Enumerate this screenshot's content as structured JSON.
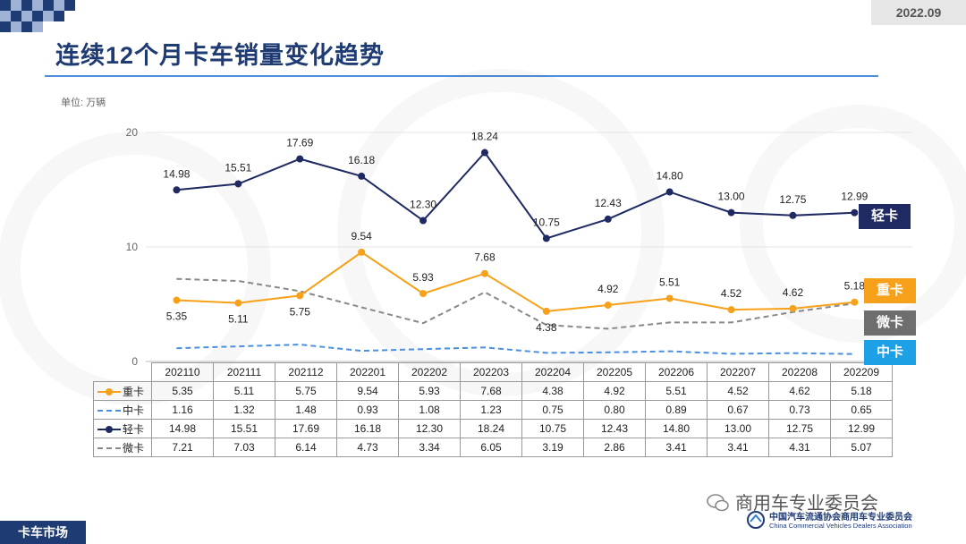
{
  "header": {
    "date": "2022.09",
    "title": "连续12个月卡车销量变化趋势",
    "unit": "单位: 万辆"
  },
  "chart_data": {
    "type": "line",
    "title": "连续12个月卡车销量变化趋势",
    "ylabel": "单位: 万辆",
    "ylim": [
      0,
      20
    ],
    "yticks": [
      "0",
      "10",
      "20"
    ],
    "categories": [
      "202110",
      "202111",
      "202112",
      "202201",
      "202202",
      "202203",
      "202204",
      "202205",
      "202206",
      "202207",
      "202208",
      "202209"
    ],
    "series": [
      {
        "name": "重卡",
        "tag": "重卡",
        "color": "#f7a11a",
        "style": "solid-marker",
        "values": [
          5.35,
          5.11,
          5.75,
          9.54,
          5.93,
          7.68,
          4.38,
          4.92,
          5.51,
          4.52,
          4.62,
          5.18
        ],
        "labels": [
          "5.35",
          "5.11",
          "5.75",
          "9.54",
          "5.93",
          "7.68",
          "4.38",
          "4.92",
          "5.51",
          "4.52",
          "4.62",
          "5.18"
        ]
      },
      {
        "name": "中卡",
        "tag": "中卡",
        "color": "#4a90e2",
        "style": "dashed",
        "values": [
          1.16,
          1.32,
          1.48,
          0.93,
          1.08,
          1.23,
          0.75,
          0.8,
          0.89,
          0.67,
          0.73,
          0.65
        ],
        "labels": [
          "1.16",
          "1.32",
          "1.48",
          "0.93",
          "1.08",
          "1.23",
          "0.75",
          "0.80",
          "0.89",
          "0.67",
          "0.73",
          "0.65"
        ]
      },
      {
        "name": "轻卡",
        "tag": "轻卡",
        "color": "#1f2a63",
        "style": "solid-marker",
        "values": [
          14.98,
          15.51,
          17.69,
          16.18,
          12.3,
          18.24,
          10.75,
          12.43,
          14.8,
          13.0,
          12.75,
          12.99
        ],
        "labels": [
          "14.98",
          "15.51",
          "17.69",
          "16.18",
          "12.30",
          "18.24",
          "10.75",
          "12.43",
          "14.80",
          "13.00",
          "12.75",
          "12.99"
        ]
      },
      {
        "name": "微卡",
        "tag": "微卡",
        "color": "#888888",
        "style": "dashed",
        "values": [
          7.21,
          7.03,
          6.14,
          4.73,
          3.34,
          6.05,
          3.19,
          2.86,
          3.41,
          3.41,
          4.31,
          5.07
        ],
        "labels": [
          "7.21",
          "7.03",
          "6.14",
          "4.73",
          "3.34",
          "6.05",
          "3.19",
          "2.86",
          "3.41",
          "3.41",
          "4.31",
          "5.07"
        ]
      }
    ]
  },
  "tags": {
    "light": "轻卡",
    "heavy": "重卡",
    "mini": "微卡",
    "medium": "中卡"
  },
  "tag_colors": {
    "light": "#1f2a63",
    "heavy": "#f7a11a",
    "mini": "#6e6e6e",
    "medium": "#1ea0e6"
  },
  "footer": {
    "section": "卡车市场",
    "wechat": "商用车专业委员会",
    "org_cn": "中国汽车流通协会商用车专业委员会",
    "org_en": "China Commercial Vehicles Dealers Association"
  }
}
